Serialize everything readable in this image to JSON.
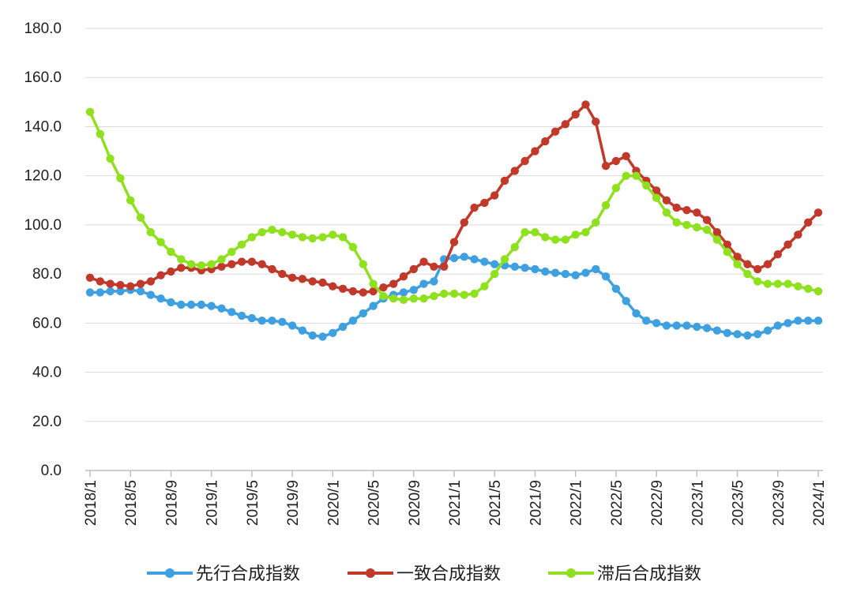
{
  "chart_data": {
    "type": "line",
    "title": "",
    "xlabel": "",
    "ylabel": "",
    "ylim": [
      0,
      180
    ],
    "yticks": [
      0,
      20,
      40,
      60,
      80,
      100,
      120,
      140,
      160,
      180
    ],
    "ytick_labels": [
      "0.0",
      "20.0",
      "40.0",
      "60.0",
      "80.0",
      "100.0",
      "120.0",
      "140.0",
      "160.0",
      "180.0"
    ],
    "x": [
      "2018/1",
      "2018/2",
      "2018/3",
      "2018/4",
      "2018/5",
      "2018/6",
      "2018/7",
      "2018/8",
      "2018/9",
      "2018/10",
      "2018/11",
      "2018/12",
      "2019/1",
      "2019/2",
      "2019/3",
      "2019/4",
      "2019/5",
      "2019/6",
      "2019/7",
      "2019/8",
      "2019/9",
      "2019/10",
      "2019/11",
      "2019/12",
      "2020/1",
      "2020/2",
      "2020/3",
      "2020/4",
      "2020/5",
      "2020/6",
      "2020/7",
      "2020/8",
      "2020/9",
      "2020/10",
      "2020/11",
      "2020/12",
      "2021/1",
      "2021/2",
      "2021/3",
      "2021/4",
      "2021/5",
      "2021/6",
      "2021/7",
      "2021/8",
      "2021/9",
      "2021/10",
      "2021/11",
      "2021/12",
      "2022/1",
      "2022/2",
      "2022/3",
      "2022/4",
      "2022/5",
      "2022/6",
      "2022/7",
      "2022/8",
      "2022/9",
      "2022/10",
      "2022/11",
      "2022/12",
      "2023/1",
      "2023/2",
      "2023/3",
      "2023/4",
      "2023/5",
      "2023/6",
      "2023/7",
      "2023/8",
      "2023/9",
      "2023/10",
      "2023/11",
      "2023/12",
      "2024/1"
    ],
    "xtick_labels": [
      "2018/1",
      "2018/5",
      "2018/9",
      "2019/1",
      "2019/5",
      "2019/9",
      "2020/1",
      "2020/5",
      "2020/9",
      "2021/1",
      "2021/5",
      "2021/9",
      "2022/1",
      "2022/5",
      "2022/9",
      "2023/1",
      "2023/5",
      "2023/9",
      "2024/1"
    ],
    "grid": true,
    "legend_position": "bottom",
    "series": [
      {
        "name": "先行合成指数",
        "color": "#3fa0e0",
        "values": [
          72.5,
          72.5,
          73,
          73,
          73.5,
          73,
          71.5,
          70,
          68.5,
          67.5,
          67.5,
          67.5,
          67,
          66,
          64.5,
          63,
          62,
          61,
          61,
          60.5,
          59,
          57,
          55,
          54.5,
          56,
          58.5,
          61,
          64,
          67,
          70,
          71.5,
          72.5,
          73.5,
          76,
          77,
          86,
          86.5,
          87,
          86,
          85,
          84,
          83.5,
          83,
          82.5,
          82,
          81,
          80.5,
          80,
          79.5,
          80.5,
          82,
          79,
          74,
          69,
          64,
          61,
          60,
          59,
          59,
          59,
          58.5,
          58,
          57,
          56,
          55.5,
          55,
          55.5,
          57,
          59,
          60,
          61,
          61,
          61
        ]
      },
      {
        "name": "一致合成指数",
        "color": "#c0392b",
        "values": [
          78.5,
          77,
          76,
          75.5,
          75,
          76,
          77,
          79.5,
          81,
          82.5,
          82.5,
          81.5,
          82,
          83,
          84,
          85,
          85,
          84,
          82,
          80,
          78.5,
          78,
          77,
          76.5,
          75,
          74,
          73,
          72.5,
          73,
          74.5,
          76,
          79,
          82,
          85,
          83,
          83,
          93,
          101,
          107,
          109,
          112,
          118,
          122,
          126,
          130,
          134,
          138,
          141,
          145,
          149,
          142,
          124,
          126,
          128,
          122,
          118,
          114,
          110,
          107,
          106,
          105,
          102,
          97,
          92,
          87,
          84,
          82,
          84,
          88,
          92,
          96,
          101,
          105
        ]
      },
      {
        "name": "滞后合成指数",
        "color": "#8fe01f",
        "values": [
          146,
          137,
          127,
          119,
          110,
          103,
          97,
          93,
          89,
          86,
          84,
          83.5,
          84,
          86,
          89,
          92,
          95,
          97,
          98,
          97,
          96,
          95,
          94.5,
          95,
          96,
          95,
          91,
          84,
          76,
          71,
          70,
          69.5,
          70,
          70,
          71,
          72,
          72,
          71.5,
          72,
          75,
          80,
          86,
          91,
          97,
          97,
          95,
          94,
          94,
          96,
          97,
          101,
          108,
          115,
          120,
          120,
          116,
          111,
          105,
          101,
          100,
          99,
          98,
          94,
          89,
          84,
          80,
          77,
          76,
          76,
          76,
          75,
          74,
          73
        ]
      }
    ]
  }
}
